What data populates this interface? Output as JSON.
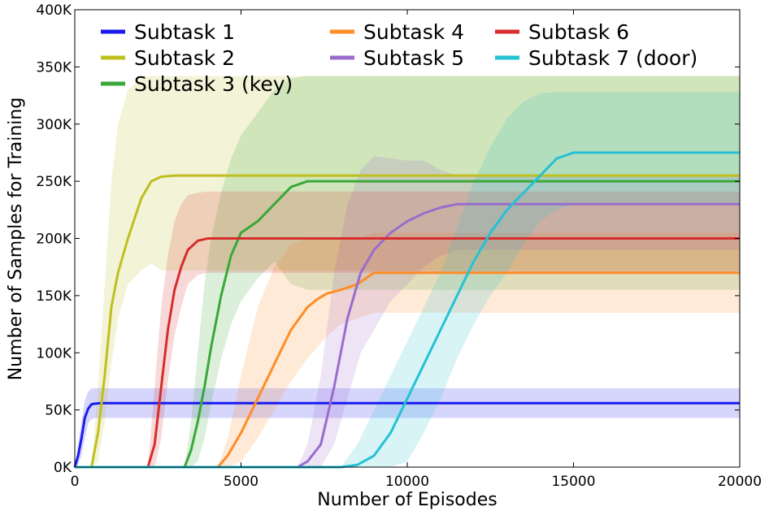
{
  "chart_data": {
    "type": "line",
    "title": "",
    "xlabel": "Number of Episodes",
    "ylabel": "Number of Samples for Training",
    "xlim": [
      0,
      20000
    ],
    "ylim": [
      0,
      400000
    ],
    "xticks": [
      0,
      5000,
      10000,
      15000,
      20000
    ],
    "xtick_labels": [
      "0",
      "5000",
      "10000",
      "15000",
      "20000"
    ],
    "yticks": [
      0,
      50000,
      100000,
      150000,
      200000,
      250000,
      300000,
      350000,
      400000
    ],
    "ytick_labels": [
      "0K",
      "50K",
      "100K",
      "150K",
      "200K",
      "250K",
      "300K",
      "350K",
      "400K"
    ],
    "grid": false,
    "legend_position": "top",
    "series": [
      {
        "name": "Subtask 1",
        "color": "#1a1aee",
        "x": [
          0,
          100,
          200,
          300,
          400,
          500,
          600,
          800,
          1000,
          20000
        ],
        "mean": [
          0,
          10000,
          25000,
          43000,
          51000,
          55000,
          55500,
          56000,
          56000,
          56000
        ],
        "lower": [
          0,
          2000,
          10000,
          25000,
          38000,
          42000,
          43000,
          43000,
          43000,
          43000
        ],
        "upper": [
          0,
          20000,
          40000,
          58000,
          66000,
          69000,
          69000,
          69000,
          69000,
          69000
        ]
      },
      {
        "name": "Subtask 2",
        "color": "#bfbf1f",
        "x": [
          500,
          700,
          900,
          1100,
          1300,
          1600,
          2000,
          2300,
          2600,
          3000,
          20000
        ],
        "mean": [
          0,
          30000,
          80000,
          140000,
          170000,
          200000,
          235000,
          250000,
          254000,
          255000,
          255000
        ],
        "lower": [
          0,
          5000,
          40000,
          90000,
          130000,
          160000,
          172000,
          178000,
          172000,
          172000,
          172000
        ],
        "upper": [
          0,
          70000,
          160000,
          250000,
          300000,
          330000,
          340000,
          342000,
          342000,
          342000,
          342000
        ]
      },
      {
        "name": "Subtask 3 (key)",
        "color": "#3aa83a",
        "x": [
          3300,
          3500,
          3700,
          3900,
          4100,
          4400,
          4700,
          5000,
          5500,
          6000,
          6500,
          7000,
          20000
        ],
        "mean": [
          0,
          15000,
          40000,
          70000,
          105000,
          150000,
          185000,
          205000,
          215000,
          230000,
          245000,
          250000,
          250000
        ],
        "lower": [
          0,
          0,
          5000,
          25000,
          55000,
          95000,
          125000,
          145000,
          165000,
          180000,
          160000,
          155000,
          155000
        ],
        "upper": [
          0,
          40000,
          100000,
          160000,
          200000,
          240000,
          270000,
          290000,
          310000,
          330000,
          340000,
          342000,
          342000
        ]
      },
      {
        "name": "Subtask 4",
        "color": "#ff8c26",
        "x": [
          4300,
          4600,
          5000,
          5500,
          6000,
          6500,
          7000,
          7300,
          7600,
          8000,
          8500,
          9000,
          20000
        ],
        "mean": [
          0,
          10000,
          30000,
          60000,
          90000,
          120000,
          140000,
          147000,
          152000,
          155000,
          160000,
          170000,
          170000
        ],
        "lower": [
          0,
          0,
          5000,
          25000,
          50000,
          75000,
          95000,
          105000,
          115000,
          125000,
          130000,
          135000,
          135000
        ],
        "upper": [
          0,
          25000,
          80000,
          140000,
          175000,
          195000,
          200000,
          200000,
          200000,
          200000,
          200000,
          205000,
          205000
        ]
      },
      {
        "name": "Subtask 5",
        "color": "#9a6ccc",
        "x": [
          6700,
          7000,
          7400,
          7800,
          8200,
          8600,
          9000,
          9500,
          10000,
          10500,
          11000,
          11500,
          12000,
          20000
        ],
        "mean": [
          0,
          5000,
          20000,
          70000,
          130000,
          170000,
          190000,
          205000,
          215000,
          222000,
          227000,
          230000,
          230000,
          230000
        ],
        "lower": [
          0,
          0,
          0,
          20000,
          60000,
          100000,
          120000,
          145000,
          160000,
          175000,
          185000,
          190000,
          190000,
          190000
        ],
        "upper": [
          0,
          20000,
          80000,
          170000,
          230000,
          260000,
          272000,
          270000,
          268000,
          268000,
          260000,
          255000,
          255000,
          255000
        ]
      },
      {
        "name": "Subtask 6",
        "color": "#d62d2d",
        "x": [
          2200,
          2400,
          2600,
          2800,
          3000,
          3200,
          3400,
          3700,
          4000,
          20000
        ],
        "mean": [
          0,
          20000,
          70000,
          120000,
          155000,
          175000,
          190000,
          198000,
          200000,
          200000
        ],
        "lower": [
          0,
          0,
          25000,
          75000,
          115000,
          140000,
          160000,
          168000,
          170000,
          170000
        ],
        "upper": [
          0,
          70000,
          140000,
          185000,
          215000,
          230000,
          238000,
          240000,
          241000,
          241000
        ]
      },
      {
        "name": "Subtask 7 (door)",
        "color": "#25c2d4",
        "x": [
          8000,
          8500,
          9000,
          9500,
          10000,
          10500,
          11000,
          11500,
          12000,
          12500,
          13000,
          13500,
          14000,
          14500,
          15000,
          20000
        ],
        "mean": [
          0,
          2000,
          10000,
          30000,
          60000,
          90000,
          120000,
          150000,
          180000,
          205000,
          225000,
          240000,
          255000,
          270000,
          275000,
          275000
        ],
        "lower": [
          0,
          0,
          0,
          0,
          5000,
          30000,
          60000,
          95000,
          125000,
          150000,
          170000,
          195000,
          215000,
          225000,
          230000,
          230000
        ],
        "upper": [
          0,
          20000,
          50000,
          80000,
          110000,
          140000,
          170000,
          210000,
          250000,
          280000,
          305000,
          320000,
          327000,
          328000,
          328000,
          328000
        ]
      }
    ]
  }
}
